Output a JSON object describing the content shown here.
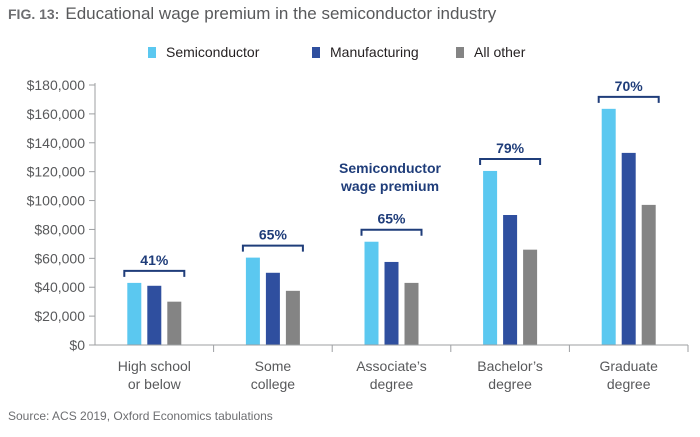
{
  "figure": {
    "label": "FIG. 13:",
    "title": "Educational wage premium in the semiconductor industry",
    "source": "Source: ACS 2019, Oxford Economics tabulations"
  },
  "chart_data": {
    "type": "bar",
    "categories": [
      [
        "High school",
        "or below"
      ],
      [
        "Some",
        "college"
      ],
      [
        "Associate’s",
        "degree"
      ],
      [
        "Bachelor’s",
        "degree"
      ],
      [
        "Graduate",
        "degree"
      ]
    ],
    "series": [
      {
        "name": "Semiconductor",
        "color": "#5bc8f0",
        "values": [
          43000,
          60500,
          71500,
          120500,
          163500
        ]
      },
      {
        "name": "Manufacturing",
        "color": "#2f4f9f",
        "values": [
          41000,
          50000,
          57500,
          90000,
          133000
        ]
      },
      {
        "name": "All other",
        "color": "#848484",
        "values": [
          30000,
          37500,
          43000,
          66000,
          97000
        ]
      }
    ],
    "premiums": [
      "41%",
      "65%",
      "65%",
      "79%",
      "70%"
    ],
    "annotation": [
      "Semiconductor",
      "wage premium"
    ],
    "y_ticks": [
      "$0",
      "$20,000",
      "$40,000",
      "$60,000",
      "$80,000",
      "$100,000",
      "$120,000",
      "$140,000",
      "$160,000",
      "$180,000"
    ],
    "ylim": [
      0,
      180000
    ],
    "ystep": 20000,
    "grid": false,
    "legend_position": "top-center"
  }
}
